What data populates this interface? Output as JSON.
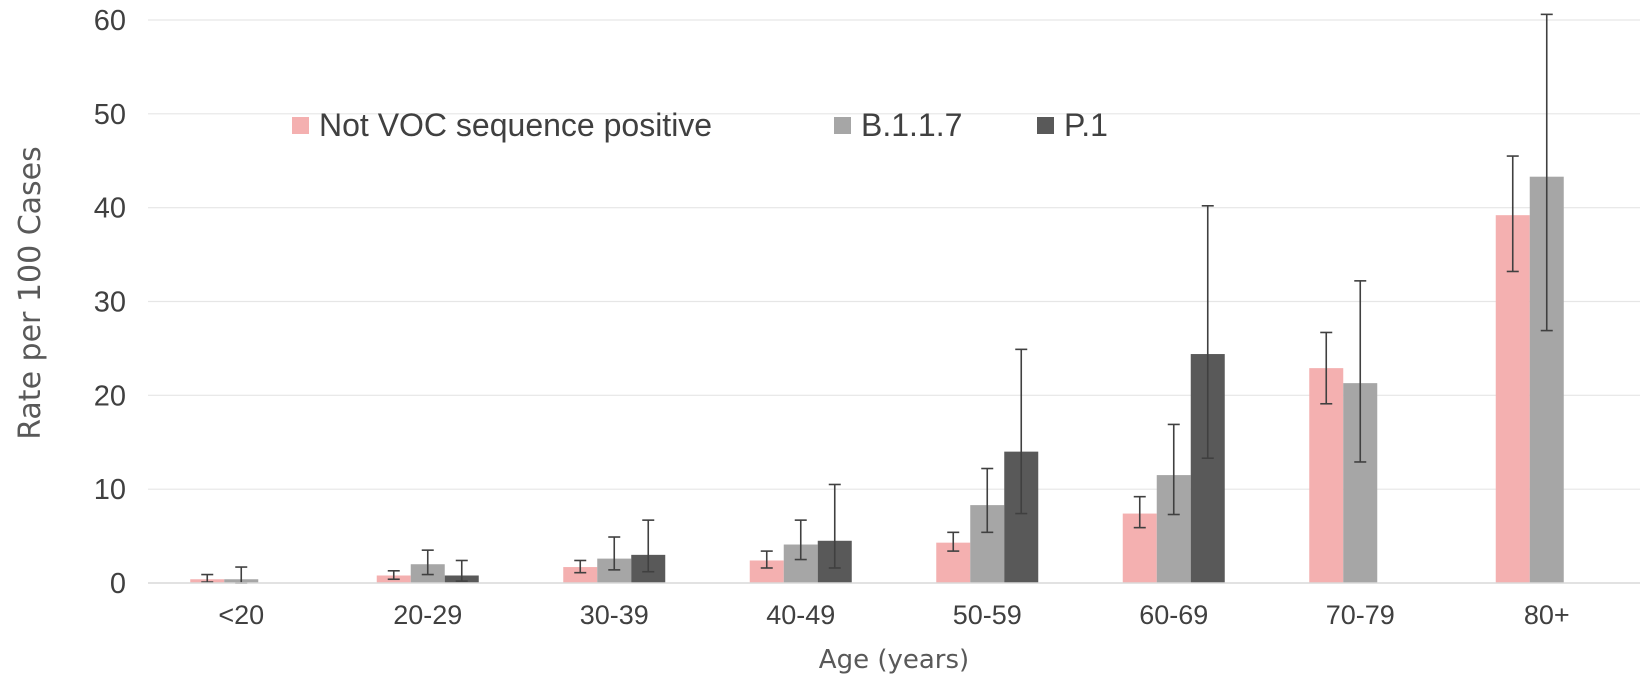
{
  "chart_data": {
    "type": "bar",
    "title": "",
    "xlabel": "Age (years)",
    "ylabel": "Rate per 100 Cases",
    "ylim": [
      0,
      60
    ],
    "yticks": [
      0,
      10,
      20,
      30,
      40,
      50,
      60
    ],
    "grid": true,
    "legend_position": "top-left",
    "categories": [
      "<20",
      "20-29",
      "30-39",
      "40-49",
      "50-59",
      "60-69",
      "70-79",
      "80+"
    ],
    "series": [
      {
        "name": "Not VOC sequence positive",
        "color": "#f4b0b0",
        "values": [
          0.4,
          0.8,
          1.7,
          2.4,
          4.3,
          7.4,
          22.9,
          39.2
        ],
        "error_low": [
          0.1,
          0.4,
          1.1,
          1.6,
          3.4,
          5.9,
          19.1,
          33.2
        ],
        "error_high": [
          0.9,
          1.3,
          2.4,
          3.4,
          5.4,
          9.2,
          26.7,
          45.5
        ]
      },
      {
        "name": "B.1.1.7",
        "color": "#a6a6a6",
        "values": [
          0.4,
          2.0,
          2.6,
          4.1,
          8.3,
          11.5,
          21.3,
          43.3
        ],
        "error_low": [
          0.0,
          0.9,
          1.4,
          2.5,
          5.4,
          7.3,
          12.9,
          26.9
        ],
        "error_high": [
          1.7,
          3.5,
          4.9,
          6.7,
          12.2,
          16.9,
          32.2,
          60.6
        ]
      },
      {
        "name": "P.1",
        "color": "#595959",
        "values": [
          null,
          0.8,
          3.0,
          4.5,
          14.0,
          24.4,
          null,
          null
        ],
        "error_low": [
          null,
          0.2,
          1.2,
          1.6,
          7.4,
          13.3,
          null,
          null
        ],
        "error_high": [
          null,
          2.4,
          6.7,
          10.5,
          24.9,
          40.2,
          null,
          null
        ]
      }
    ]
  }
}
